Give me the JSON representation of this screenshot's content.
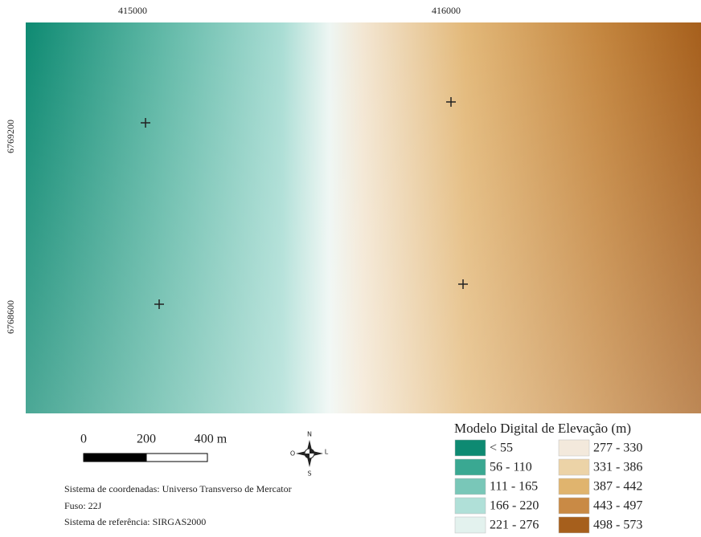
{
  "map": {
    "x_labels": [
      "415000",
      "416000"
    ],
    "y_labels": [
      "6769200",
      "6768600"
    ]
  },
  "scale_bar": {
    "labels": [
      "0",
      "200",
      "400 m"
    ]
  },
  "compass": {
    "north": "N",
    "south": "S",
    "west": "O",
    "east": "L"
  },
  "info": [
    "Sistema de coordenadas: Universo Transverso de Mercator",
    "Fuso: 22J",
    "Sistema de referência: SIRGAS2000"
  ],
  "legend": {
    "title": "Modelo Digital de Elevação (m)",
    "items": [
      {
        "label": "< 55",
        "color": "#0e8a72"
      },
      {
        "label": "56 - 110",
        "color": "#3aa892"
      },
      {
        "label": "111 - 165",
        "color": "#79c7b8"
      },
      {
        "label": "166 - 220",
        "color": "#b0e0d8"
      },
      {
        "label": "221 - 276",
        "color": "#e3f2ee"
      },
      {
        "label": "277 - 330",
        "color": "#f3e9dc"
      },
      {
        "label": "331 - 386",
        "color": "#ecd3a7"
      },
      {
        "label": "387 - 442",
        "color": "#e0b46e"
      },
      {
        "label": "443 - 497",
        "color": "#c98a45"
      },
      {
        "label": "498 - 573",
        "color": "#a65f1c"
      }
    ]
  }
}
